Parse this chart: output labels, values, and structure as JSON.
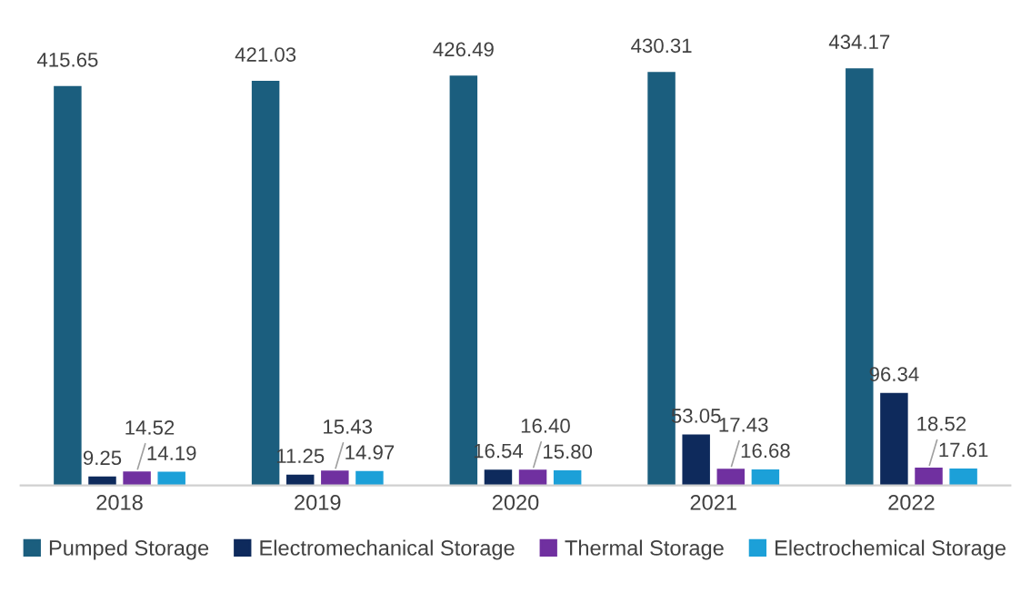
{
  "chart_data": {
    "type": "bar",
    "categories": [
      "2018",
      "2019",
      "2020",
      "2021",
      "2022"
    ],
    "series": [
      {
        "name": "Pumped Storage",
        "color": "#1b5e7e",
        "values": [
          415.65,
          421.03,
          426.49,
          430.31,
          434.17
        ],
        "value_labels": [
          "415.65",
          "421.03",
          "426.49",
          "430.31",
          "434.17"
        ]
      },
      {
        "name": "Electromechanical Storage",
        "color": "#0e2a5c",
        "values": [
          9.25,
          11.25,
          16.54,
          53.05,
          96.34
        ],
        "value_labels": [
          "9.25",
          "11.25",
          "16.54",
          "53.05",
          "96.34"
        ]
      },
      {
        "name": "Thermal Storage",
        "color": "#7030a0",
        "values": [
          14.52,
          15.43,
          16.4,
          17.43,
          18.52
        ],
        "value_labels": [
          "14.52",
          "15.43",
          "16.40",
          "17.43",
          "18.52"
        ]
      },
      {
        "name": "Electrochemical Storage",
        "color": "#1ca0d8",
        "values": [
          14.19,
          14.97,
          15.8,
          16.68,
          17.61
        ],
        "value_labels": [
          "14.19",
          "14.97",
          "15.80",
          "16.68",
          "17.61"
        ]
      }
    ],
    "legend": "bottom",
    "grid": false
  }
}
